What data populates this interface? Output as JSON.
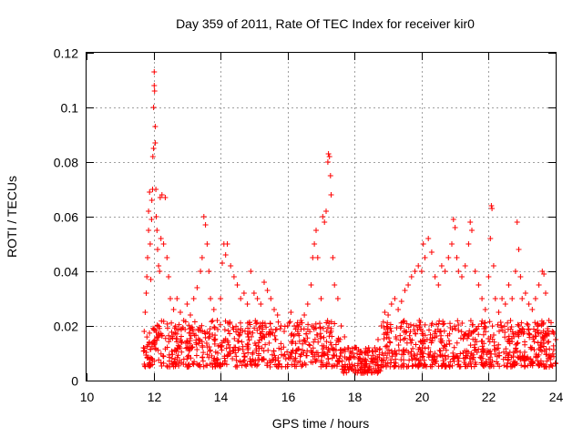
{
  "chart_data": {
    "type": "scatter",
    "title": "Day 359 of 2011, Rate Of TEC Index for receiver kir0",
    "xlabel": "GPS time / hours",
    "ylabel": "ROTI / TECUs",
    "xlim": [
      10,
      24
    ],
    "ylim": [
      0,
      0.12
    ],
    "x_ticks": [
      "10",
      "12",
      "14",
      "16",
      "18",
      "20",
      "22",
      "24"
    ],
    "y_ticks": [
      "0",
      "0.02",
      "0.04",
      "0.06",
      "0.08",
      "0.1",
      "0.12"
    ],
    "grid": true,
    "marker": "+",
    "color": "#ff0000",
    "series": [
      {
        "points": [
          [
            11.7,
            0.012
          ],
          [
            11.72,
            0.018
          ],
          [
            11.75,
            0.025
          ],
          [
            11.78,
            0.032
          ],
          [
            11.8,
            0.038
          ],
          [
            11.82,
            0.045
          ],
          [
            11.85,
            0.055
          ],
          [
            11.85,
            0.062
          ],
          [
            11.88,
            0.069
          ],
          [
            11.9,
            0.05
          ],
          [
            11.92,
            0.037
          ],
          [
            11.94,
            0.059
          ],
          [
            11.95,
            0.066
          ],
          [
            11.97,
            0.07
          ],
          [
            11.98,
            0.082
          ],
          [
            12.0,
            0.085
          ],
          [
            12.0,
            0.1
          ],
          [
            12.02,
            0.108
          ],
          [
            12.02,
            0.113
          ],
          [
            12.03,
            0.106
          ],
          [
            12.05,
            0.093
          ],
          [
            12.05,
            0.087
          ],
          [
            12.07,
            0.07
          ],
          [
            12.08,
            0.06
          ],
          [
            12.1,
            0.055
          ],
          [
            12.12,
            0.048
          ],
          [
            12.15,
            0.042
          ],
          [
            12.18,
            0.04
          ],
          [
            12.2,
            0.067
          ],
          [
            12.22,
            0.052
          ],
          [
            12.25,
            0.068
          ],
          [
            12.3,
            0.05
          ],
          [
            12.35,
            0.067
          ],
          [
            12.4,
            0.045
          ],
          [
            12.45,
            0.038
          ],
          [
            12.5,
            0.03
          ],
          [
            12.6,
            0.026
          ],
          [
            12.7,
            0.03
          ],
          [
            12.8,
            0.025
          ],
          [
            12.9,
            0.022
          ],
          [
            13.0,
            0.028
          ],
          [
            13.1,
            0.024
          ],
          [
            13.2,
            0.03
          ],
          [
            13.3,
            0.034
          ],
          [
            13.4,
            0.04
          ],
          [
            13.45,
            0.045
          ],
          [
            13.5,
            0.06
          ],
          [
            13.55,
            0.057
          ],
          [
            13.6,
            0.05
          ],
          [
            13.65,
            0.04
          ],
          [
            13.7,
            0.03
          ],
          [
            13.8,
            0.026
          ],
          [
            13.9,
            0.022
          ],
          [
            14.0,
            0.03
          ],
          [
            14.05,
            0.043
          ],
          [
            14.1,
            0.05
          ],
          [
            14.15,
            0.046
          ],
          [
            14.2,
            0.05
          ],
          [
            14.3,
            0.042
          ],
          [
            14.4,
            0.038
          ],
          [
            14.5,
            0.035
          ],
          [
            14.6,
            0.03
          ],
          [
            14.7,
            0.032
          ],
          [
            14.8,
            0.028
          ],
          [
            14.9,
            0.04
          ],
          [
            15.0,
            0.032
          ],
          [
            15.1,
            0.03
          ],
          [
            15.2,
            0.028
          ],
          [
            15.3,
            0.036
          ],
          [
            15.4,
            0.033
          ],
          [
            15.5,
            0.03
          ],
          [
            15.6,
            0.026
          ],
          [
            15.7,
            0.024
          ],
          [
            15.8,
            0.02
          ],
          [
            15.9,
            0.018
          ],
          [
            16.0,
            0.02
          ],
          [
            16.1,
            0.025
          ],
          [
            16.2,
            0.02
          ],
          [
            16.3,
            0.018
          ],
          [
            16.4,
            0.022
          ],
          [
            16.5,
            0.024
          ],
          [
            16.6,
            0.028
          ],
          [
            16.7,
            0.035
          ],
          [
            16.75,
            0.045
          ],
          [
            16.8,
            0.05
          ],
          [
            16.85,
            0.055
          ],
          [
            16.9,
            0.045
          ],
          [
            17.0,
            0.03
          ],
          [
            17.05,
            0.06
          ],
          [
            17.1,
            0.058
          ],
          [
            17.15,
            0.062
          ],
          [
            17.2,
            0.08
          ],
          [
            17.22,
            0.083
          ],
          [
            17.25,
            0.082
          ],
          [
            17.28,
            0.075
          ],
          [
            17.3,
            0.068
          ],
          [
            17.35,
            0.045
          ],
          [
            17.4,
            0.035
          ],
          [
            17.5,
            0.03
          ],
          [
            17.6,
            0.02
          ],
          [
            17.7,
            0.016
          ],
          [
            17.8,
            0.012
          ],
          [
            17.9,
            0.01
          ],
          [
            18.0,
            0.012
          ],
          [
            18.1,
            0.008
          ],
          [
            18.2,
            0.006
          ],
          [
            18.3,
            0.005
          ],
          [
            18.4,
            0.004
          ],
          [
            18.5,
            0.008
          ],
          [
            18.6,
            0.012
          ],
          [
            18.7,
            0.015
          ],
          [
            18.8,
            0.02
          ],
          [
            18.9,
            0.025
          ],
          [
            19.0,
            0.024
          ],
          [
            19.1,
            0.028
          ],
          [
            19.2,
            0.03
          ],
          [
            19.3,
            0.026
          ],
          [
            19.4,
            0.029
          ],
          [
            19.5,
            0.033
          ],
          [
            19.6,
            0.035
          ],
          [
            19.7,
            0.038
          ],
          [
            19.8,
            0.04
          ],
          [
            19.9,
            0.042
          ],
          [
            20.0,
            0.04
          ],
          [
            20.05,
            0.05
          ],
          [
            20.1,
            0.045
          ],
          [
            20.2,
            0.052
          ],
          [
            20.3,
            0.047
          ],
          [
            20.4,
            0.038
          ],
          [
            20.5,
            0.035
          ],
          [
            20.6,
            0.042
          ],
          [
            20.7,
            0.04
          ],
          [
            20.8,
            0.045
          ],
          [
            20.9,
            0.05
          ],
          [
            20.95,
            0.059
          ],
          [
            21.0,
            0.056
          ],
          [
            21.05,
            0.045
          ],
          [
            21.1,
            0.04
          ],
          [
            21.2,
            0.038
          ],
          [
            21.3,
            0.042
          ],
          [
            21.4,
            0.05
          ],
          [
            21.45,
            0.058
          ],
          [
            21.5,
            0.055
          ],
          [
            21.6,
            0.04
          ],
          [
            21.7,
            0.035
          ],
          [
            21.8,
            0.03
          ],
          [
            21.9,
            0.026
          ],
          [
            22.0,
            0.038
          ],
          [
            22.05,
            0.052
          ],
          [
            22.08,
            0.064
          ],
          [
            22.1,
            0.063
          ],
          [
            22.15,
            0.042
          ],
          [
            22.2,
            0.03
          ],
          [
            22.3,
            0.025
          ],
          [
            22.4,
            0.03
          ],
          [
            22.5,
            0.028
          ],
          [
            22.6,
            0.035
          ],
          [
            22.7,
            0.03
          ],
          [
            22.8,
            0.04
          ],
          [
            22.85,
            0.058
          ],
          [
            22.9,
            0.048
          ],
          [
            22.95,
            0.038
          ],
          [
            23.0,
            0.03
          ],
          [
            23.1,
            0.032
          ],
          [
            23.2,
            0.028
          ],
          [
            23.3,
            0.026
          ],
          [
            23.4,
            0.03
          ],
          [
            23.5,
            0.035
          ],
          [
            23.6,
            0.04
          ],
          [
            23.65,
            0.039
          ],
          [
            23.7,
            0.032
          ],
          [
            23.8,
            0.022
          ],
          [
            23.9,
            0.018
          ],
          [
            24.0,
            0.015
          ]
        ],
        "baseline_band": {
          "x_range": [
            11.7,
            24.0
          ],
          "y_range": [
            0.005,
            0.022
          ]
        }
      }
    ]
  }
}
